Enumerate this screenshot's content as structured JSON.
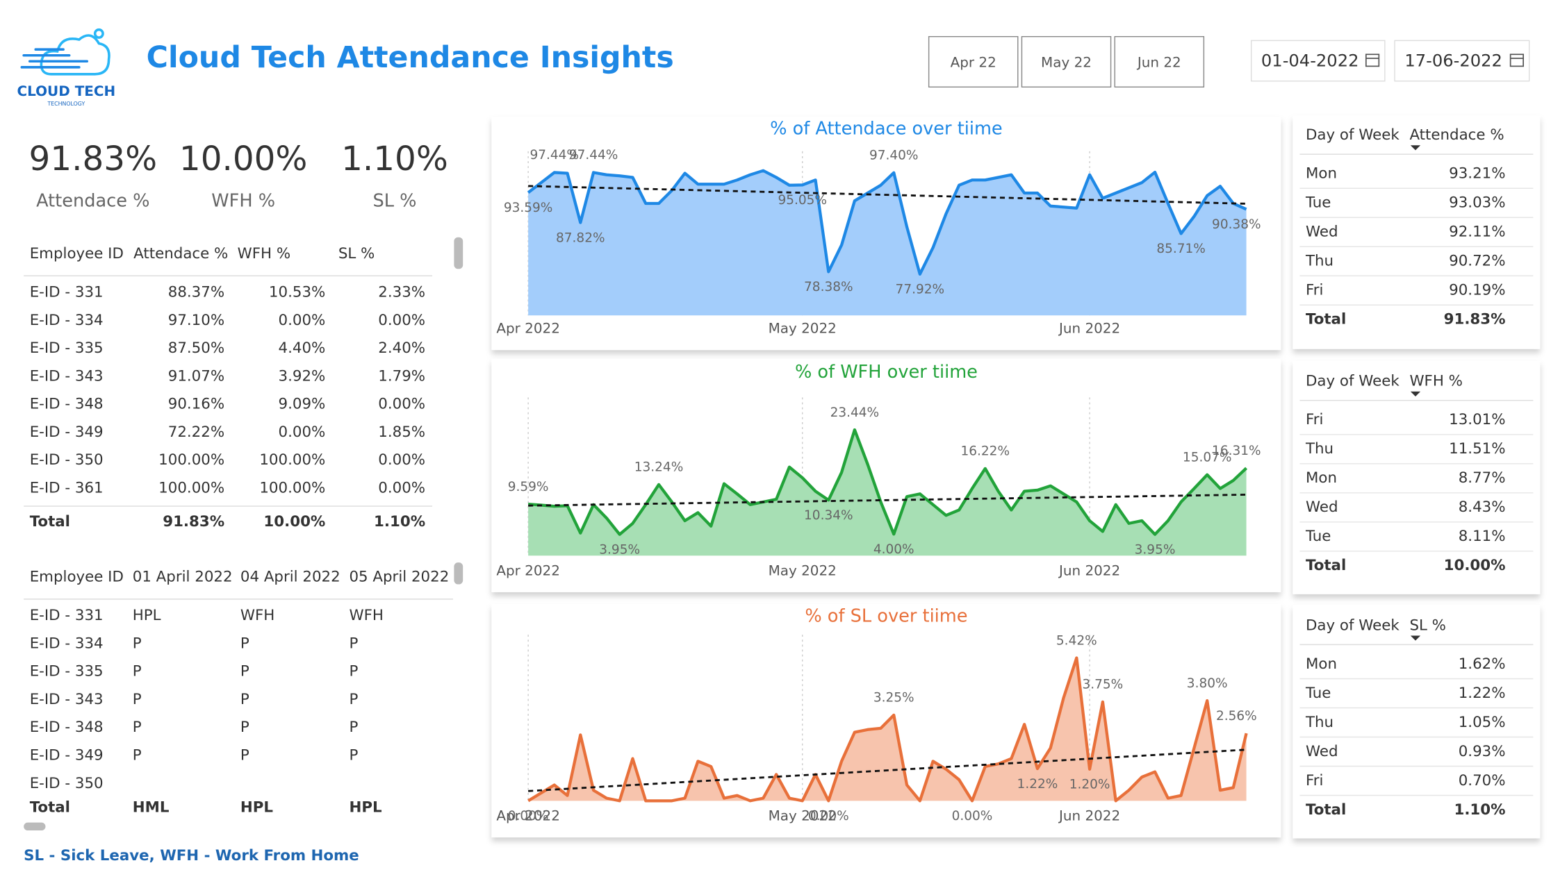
{
  "header": {
    "title": "Cloud Tech Attendance Insights",
    "logo_name": "CLOUD TECH",
    "logo_sub": "TECHNOLOGY",
    "month_buttons": [
      "Apr 22",
      "May 22",
      "Jun 22"
    ],
    "date_from": "01-04-2022",
    "date_to": "17-06-2022"
  },
  "kpis": [
    {
      "value": "91.83%",
      "label": "Attendace %"
    },
    {
      "value": "10.00%",
      "label": "WFH %"
    },
    {
      "value": "1.10%",
      "label": "SL %"
    }
  ],
  "employee_table": {
    "columns": [
      "Employee ID",
      "Attendace %",
      "WFH %",
      "SL %"
    ],
    "rows": [
      [
        "E-ID - 331",
        "88.37%",
        "10.53%",
        "2.33%"
      ],
      [
        "E-ID - 334",
        "97.10%",
        "0.00%",
        "0.00%"
      ],
      [
        "E-ID - 335",
        "87.50%",
        "4.40%",
        "2.40%"
      ],
      [
        "E-ID - 343",
        "91.07%",
        "3.92%",
        "1.79%"
      ],
      [
        "E-ID - 348",
        "90.16%",
        "9.09%",
        "0.00%"
      ],
      [
        "E-ID - 349",
        "72.22%",
        "0.00%",
        "1.85%"
      ],
      [
        "E-ID - 350",
        "100.00%",
        "100.00%",
        "0.00%"
      ],
      [
        "E-ID - 361",
        "100.00%",
        "100.00%",
        "0.00%"
      ]
    ],
    "total": [
      "Total",
      "91.83%",
      "10.00%",
      "1.10%"
    ]
  },
  "daily_table": {
    "columns": [
      "Employee ID",
      "01 April 2022",
      "04 April 2022",
      "05 April 2022"
    ],
    "rows": [
      [
        "E-ID - 331",
        "HPL",
        "WFH",
        "WFH"
      ],
      [
        "E-ID - 334",
        "P",
        "P",
        "P"
      ],
      [
        "E-ID - 335",
        "P",
        "P",
        "P"
      ],
      [
        "E-ID - 343",
        "P",
        "P",
        "P"
      ],
      [
        "E-ID - 348",
        "P",
        "P",
        "P"
      ],
      [
        "E-ID - 349",
        "P",
        "P",
        "P"
      ],
      [
        "E-ID - 350"
      ]
    ],
    "total": [
      "Total",
      "HML",
      "HPL",
      "HPL"
    ]
  },
  "footer_note": "SL - Sick Leave, WFH - Work From Home",
  "day_of_week_tables": [
    {
      "columns": [
        "Day of Week",
        "Attendace %"
      ],
      "rows": [
        [
          "Mon",
          "93.21%"
        ],
        [
          "Tue",
          "93.03%"
        ],
        [
          "Wed",
          "92.11%"
        ],
        [
          "Thu",
          "90.72%"
        ],
        [
          "Fri",
          "90.19%"
        ]
      ],
      "total": [
        "Total",
        "91.83%"
      ]
    },
    {
      "columns": [
        "Day of Week",
        "WFH %"
      ],
      "rows": [
        [
          "Fri",
          "13.01%"
        ],
        [
          "Thu",
          "11.51%"
        ],
        [
          "Mon",
          "8.77%"
        ],
        [
          "Wed",
          "8.43%"
        ],
        [
          "Tue",
          "8.11%"
        ]
      ],
      "total": [
        "Total",
        "10.00%"
      ]
    },
    {
      "columns": [
        "Day of Week",
        "SL %"
      ],
      "rows": [
        [
          "Mon",
          "1.62%"
        ],
        [
          "Tue",
          "1.22%"
        ],
        [
          "Thu",
          "1.05%"
        ],
        [
          "Wed",
          "0.93%"
        ],
        [
          "Fri",
          "0.70%"
        ]
      ],
      "total": [
        "Total",
        "1.10%"
      ]
    }
  ],
  "chart_data": [
    {
      "type": "line",
      "title": "% of Attendace over tiime",
      "color": "#1e88e5",
      "fill": "#a3cdfb",
      "trendline": true,
      "grid": true,
      "ylim": [
        70,
        100
      ],
      "categories": [
        "Apr 2022",
        null,
        null,
        null,
        null,
        null,
        null,
        null,
        null,
        null,
        null,
        null,
        null,
        null,
        null,
        null,
        null,
        null,
        null,
        null,
        null,
        "May 2022",
        null,
        null,
        null,
        null,
        null,
        null,
        null,
        null,
        null,
        null,
        null,
        null,
        null,
        null,
        null,
        null,
        null,
        null,
        null,
        null,
        null,
        "Jun 2022",
        null,
        null,
        null,
        null,
        null,
        null,
        null,
        null,
        null,
        null,
        null,
        null
      ],
      "values": [
        93.59,
        95.5,
        97.44,
        97.3,
        87.82,
        97.44,
        97.0,
        96.8,
        96.5,
        91.5,
        91.5,
        94.0,
        97.3,
        95.2,
        95.2,
        95.2,
        96.0,
        97.0,
        97.8,
        96.5,
        95.0,
        95.05,
        96.0,
        78.38,
        83.5,
        92.0,
        93.5,
        95.0,
        97.4,
        87.0,
        77.92,
        83.0,
        89.5,
        95.0,
        96.0,
        96.0,
        96.5,
        97.0,
        93.5,
        93.5,
        91.0,
        90.8,
        90.6,
        97.0,
        92.5,
        93.5,
        94.5,
        95.5,
        97.5,
        91.5,
        85.71,
        89.0,
        93.0,
        94.8,
        91.5,
        90.38
      ],
      "value_labels": [
        "93.59%",
        null,
        "97.44%",
        null,
        "87.82%",
        "97.44%",
        null,
        null,
        null,
        null,
        null,
        null,
        null,
        null,
        null,
        null,
        null,
        null,
        null,
        null,
        null,
        "95.05%",
        null,
        "78.38%",
        null,
        null,
        null,
        null,
        "97.40%",
        null,
        "77.92%",
        null,
        null,
        null,
        null,
        null,
        null,
        null,
        null,
        null,
        null,
        null,
        null,
        null,
        null,
        null,
        null,
        null,
        null,
        null,
        "85.71%",
        null,
        null,
        null,
        null,
        "90.38%"
      ]
    },
    {
      "type": "line",
      "title": "% of WFH over tiime",
      "color": "#22a33a",
      "fill": "#a7dfb4",
      "trendline": true,
      "grid": true,
      "ylim": [
        0,
        28
      ],
      "categories": [
        "Apr 2022",
        null,
        null,
        null,
        null,
        null,
        null,
        null,
        null,
        null,
        null,
        null,
        null,
        null,
        null,
        null,
        null,
        null,
        null,
        null,
        null,
        "May 2022",
        null,
        null,
        null,
        null,
        null,
        null,
        null,
        null,
        null,
        null,
        null,
        null,
        null,
        null,
        null,
        null,
        null,
        null,
        null,
        null,
        null,
        "Jun 2022",
        null,
        null,
        null,
        null,
        null,
        null,
        null,
        null,
        null,
        null,
        null,
        null
      ],
      "values": [
        9.59,
        9.4,
        9.2,
        9.3,
        4.2,
        9.5,
        7.0,
        3.95,
        6.0,
        9.5,
        13.24,
        10.0,
        6.5,
        8.0,
        5.5,
        13.4,
        11.5,
        9.5,
        10.0,
        10.5,
        16.5,
        14.5,
        12.0,
        10.34,
        15.5,
        23.44,
        17.0,
        10.0,
        4.0,
        11.0,
        11.5,
        9.5,
        7.5,
        8.5,
        12.5,
        16.22,
        12.0,
        8.5,
        12.0,
        12.2,
        13.0,
        11.5,
        10.0,
        6.5,
        4.5,
        9.5,
        6.0,
        6.5,
        3.95,
        6.5,
        10.0,
        12.5,
        15.07,
        12.5,
        14.0,
        16.31
      ],
      "value_labels": [
        "9.59%",
        null,
        null,
        null,
        null,
        null,
        null,
        "3.95%",
        null,
        null,
        "13.24%",
        null,
        null,
        null,
        null,
        null,
        null,
        null,
        null,
        null,
        null,
        null,
        null,
        "10.34%",
        null,
        "23.44%",
        null,
        null,
        "4.00%",
        null,
        null,
        null,
        null,
        null,
        null,
        "16.22%",
        null,
        null,
        null,
        null,
        null,
        null,
        null,
        null,
        null,
        null,
        null,
        null,
        "3.95%",
        null,
        null,
        null,
        "15.07%",
        null,
        null,
        "16.31%"
      ]
    },
    {
      "type": "line",
      "title": "% of SL over tiime",
      "color": "#e8703a",
      "fill": "#f7c4ad",
      "trendline": true,
      "grid": true,
      "ylim": [
        0,
        6
      ],
      "categories": [
        "Apr 2022",
        null,
        null,
        null,
        null,
        null,
        null,
        null,
        null,
        null,
        null,
        null,
        null,
        null,
        null,
        null,
        null,
        null,
        null,
        null,
        null,
        "May 2022",
        null,
        null,
        null,
        null,
        null,
        null,
        null,
        null,
        null,
        null,
        null,
        null,
        null,
        null,
        null,
        null,
        null,
        null,
        null,
        null,
        null,
        "Jun 2022",
        null,
        null,
        null,
        null,
        null,
        null,
        null,
        null,
        null,
        null,
        null,
        null
      ],
      "values": [
        0.0,
        0.3,
        0.6,
        0.2,
        2.5,
        0.4,
        0.1,
        0.0,
        1.6,
        0.0,
        0.0,
        0.0,
        0.1,
        1.5,
        1.3,
        0.1,
        0.2,
        0.0,
        0.1,
        1.0,
        0.1,
        0.0,
        1.0,
        0.0,
        1.5,
        2.6,
        2.7,
        2.75,
        3.25,
        0.6,
        0.0,
        1.5,
        1.2,
        0.8,
        0.0,
        1.3,
        1.4,
        1.6,
        2.9,
        1.22,
        2.0,
        3.9,
        5.42,
        1.2,
        3.75,
        0.0,
        0.4,
        0.9,
        1.1,
        0.1,
        0.2,
        2.0,
        3.8,
        0.4,
        0.5,
        2.56
      ],
      "value_labels": [
        "0.00%",
        null,
        null,
        null,
        null,
        null,
        null,
        null,
        null,
        null,
        null,
        null,
        null,
        null,
        null,
        null,
        null,
        null,
        null,
        null,
        null,
        null,
        null,
        "0.00%",
        null,
        null,
        null,
        null,
        "3.25%",
        null,
        null,
        null,
        null,
        null,
        "0.00%",
        null,
        null,
        null,
        null,
        "1.22%",
        null,
        null,
        "5.42%",
        "1.20%",
        "3.75%",
        null,
        null,
        null,
        null,
        null,
        null,
        null,
        "3.80%",
        null,
        null,
        "2.56%"
      ]
    }
  ]
}
